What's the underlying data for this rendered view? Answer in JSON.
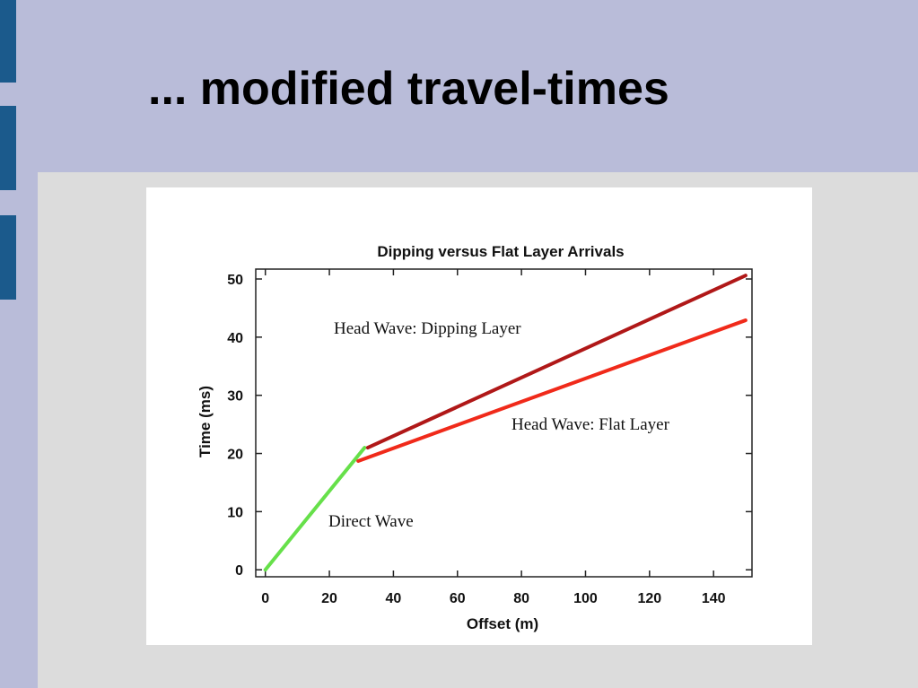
{
  "slide": {
    "title": "... modified travel-times"
  },
  "chart_data": {
    "type": "line",
    "title": "Dipping versus Flat Layer Arrivals",
    "x_label": "Offset (m)",
    "y_label": "Time (ms)",
    "xlim": [
      -3,
      152
    ],
    "ylim": [
      -1.2,
      51.7
    ],
    "xticks": [
      0,
      20,
      40,
      60,
      80,
      100,
      120,
      140
    ],
    "yticks": [
      0,
      10,
      20,
      30,
      40,
      50
    ],
    "series": [
      {
        "name": "Direct Wave",
        "color": "#66e04a",
        "x": [
          0,
          31
        ],
        "values": [
          0,
          21
        ]
      },
      {
        "name": "Head Wave: Dipping Layer",
        "color": "#b01818",
        "x": [
          32,
          150
        ],
        "values": [
          21,
          50.6
        ]
      },
      {
        "name": "Head Wave: Flat Layer",
        "color": "#f02a1a",
        "x": [
          29,
          150
        ],
        "values": [
          18.7,
          42.9
        ]
      }
    ]
  }
}
